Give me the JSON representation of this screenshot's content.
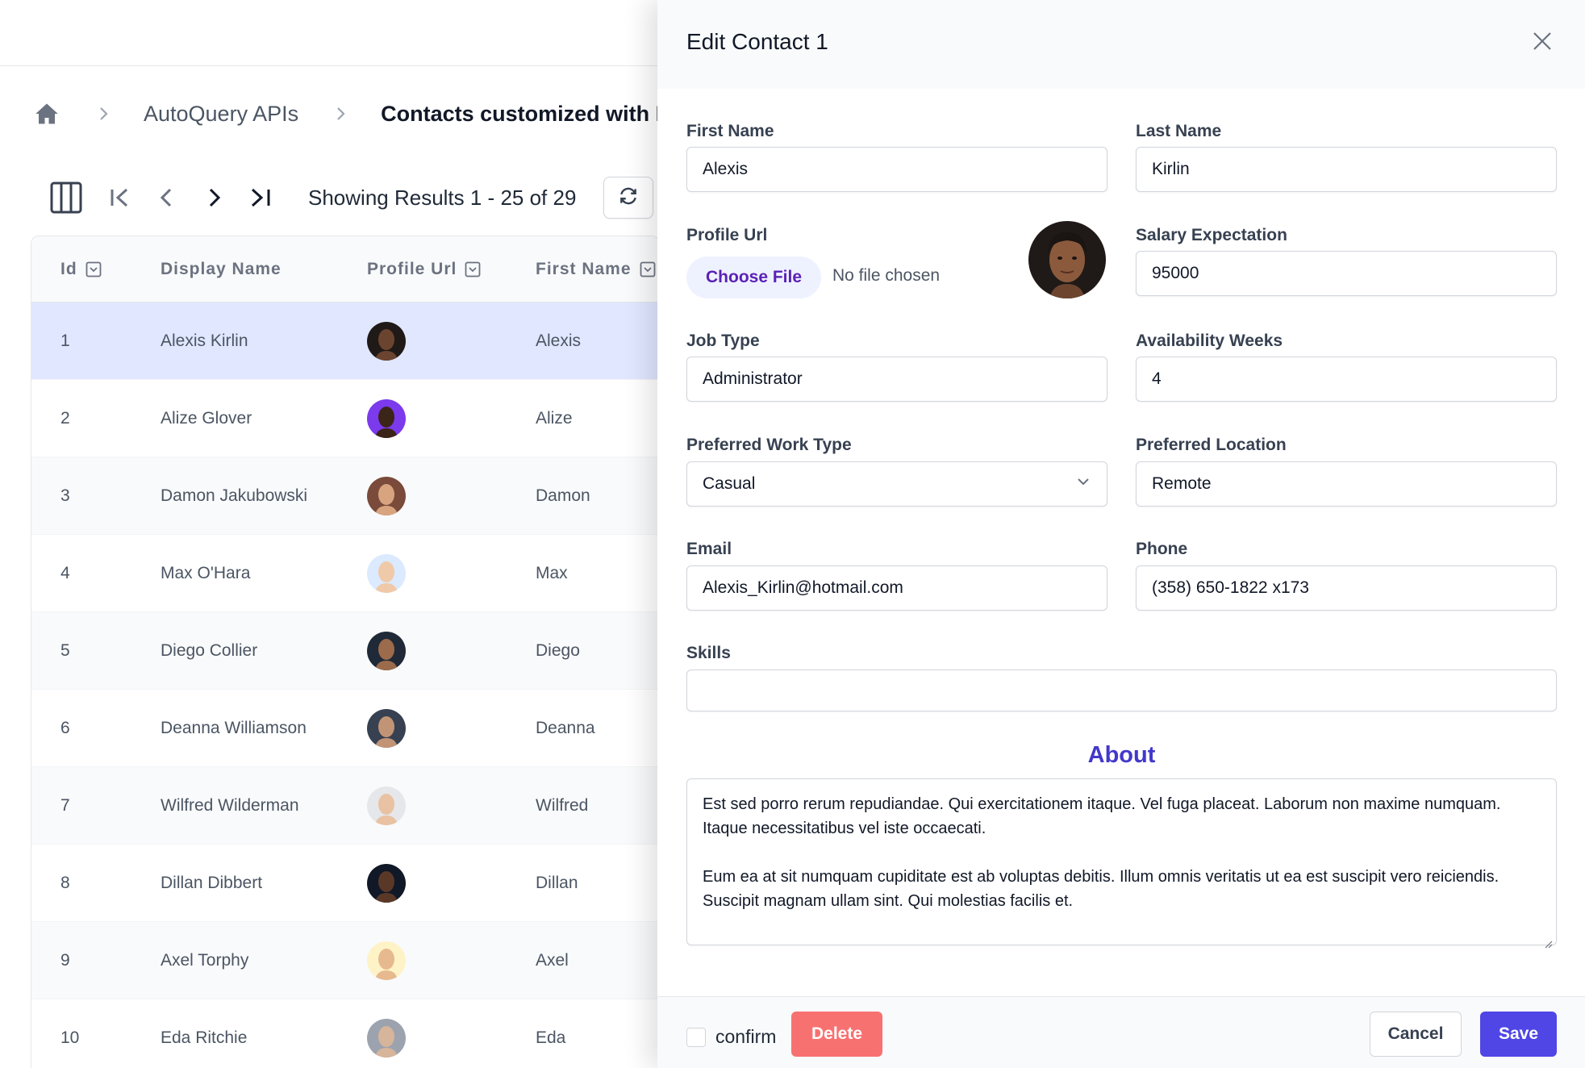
{
  "breadcrumb": {
    "home_icon": "home-icon",
    "items": [
      "AutoQuery APIs",
      "Contacts customized with Meta"
    ]
  },
  "toolbar": {
    "showing": "Showing Results 1 - 25 of 29",
    "icons": [
      "columns-icon",
      "first-page-icon",
      "prev-page-icon",
      "next-page-icon",
      "last-page-icon",
      "refresh-icon"
    ]
  },
  "table": {
    "headers": [
      "Id",
      "Display Name",
      "Profile Url",
      "First Name"
    ],
    "rows": [
      {
        "id": "1",
        "display_name": "Alexis Kirlin",
        "first_name": "Alexis"
      },
      {
        "id": "2",
        "display_name": "Alize Glover",
        "first_name": "Alize"
      },
      {
        "id": "3",
        "display_name": "Damon Jakubowski",
        "first_name": "Damon"
      },
      {
        "id": "4",
        "display_name": "Max O'Hara",
        "first_name": "Max"
      },
      {
        "id": "5",
        "display_name": "Diego Collier",
        "first_name": "Diego"
      },
      {
        "id": "6",
        "display_name": "Deanna Williamson",
        "first_name": "Deanna"
      },
      {
        "id": "7",
        "display_name": "Wilfred Wilderman",
        "first_name": "Wilfred"
      },
      {
        "id": "8",
        "display_name": "Dillan Dibbert",
        "first_name": "Dillan"
      },
      {
        "id": "9",
        "display_name": "Axel Torphy",
        "first_name": "Axel"
      },
      {
        "id": "10",
        "display_name": "Eda Ritchie",
        "first_name": "Eda"
      }
    ]
  },
  "panel": {
    "title": "Edit Contact 1",
    "labels": {
      "first_name": "First Name",
      "last_name": "Last Name",
      "profile_url": "Profile Url",
      "salary": "Salary Expectation",
      "job_type": "Job Type",
      "availability": "Availability Weeks",
      "work_type": "Preferred Work Type",
      "location": "Preferred Location",
      "email": "Email",
      "phone": "Phone",
      "skills": "Skills"
    },
    "values": {
      "first_name": "Alexis",
      "last_name": "Kirlin",
      "salary": "95000",
      "job_type": "Administrator",
      "availability": "4",
      "work_type": "Casual",
      "location": "Remote",
      "email": "Alexis_Kirlin@hotmail.com",
      "phone": "(358) 650-1822 x173",
      "skills": ""
    },
    "file": {
      "button": "Choose File",
      "status": "No file chosen"
    },
    "about": {
      "title": "About",
      "p1": "Est sed porro rerum repudiandae. Qui exercitationem itaque. Vel fuga placeat. Laborum non maxime numquam. Itaque necessitatibus vel iste occaecati.",
      "p2": "Eum ea at sit numquam cupiditate est ab voluptas debitis. Illum omnis veritatis ut ea est suscipit vero reiciendis. Suscipit magnam ullam sint. Qui molestias facilis et."
    },
    "footer": {
      "confirm": "confirm",
      "delete": "Delete",
      "cancel": "Cancel",
      "save": "Save"
    }
  },
  "colors": {
    "accent": "#4f46e5",
    "about_title": "#4338ca",
    "delete": "#f87171",
    "selected_row": "#e0e7ff"
  }
}
